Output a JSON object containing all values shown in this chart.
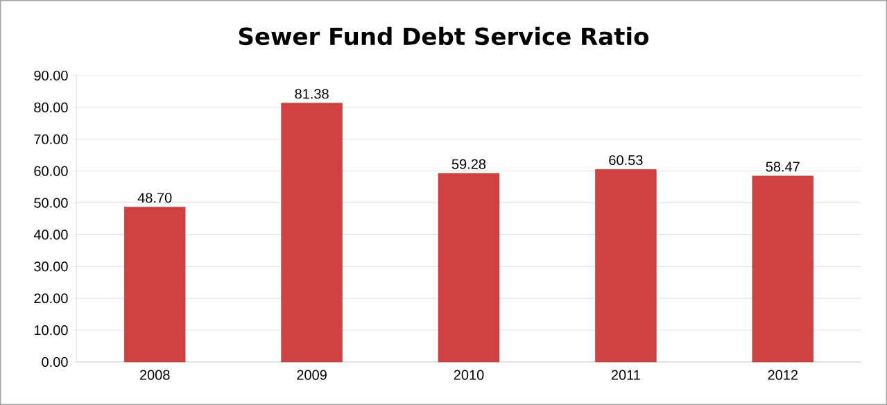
{
  "chart_data": {
    "type": "bar",
    "title": "Sewer Fund Debt Service Ratio",
    "categories": [
      "2008",
      "2009",
      "2010",
      "2011",
      "2012"
    ],
    "values": [
      48.7,
      81.38,
      59.28,
      60.53,
      58.47
    ],
    "value_labels": [
      "48.70",
      "81.38",
      "59.28",
      "60.53",
      "58.47"
    ],
    "color": "#d04242",
    "ylim": [
      0,
      90
    ],
    "yticks": [
      {
        "value": 0,
        "label": "0.00"
      },
      {
        "value": 10,
        "label": "10.00"
      },
      {
        "value": 20,
        "label": "20.00"
      },
      {
        "value": 30,
        "label": "30.00"
      },
      {
        "value": 40,
        "label": "40.00"
      },
      {
        "value": 50,
        "label": "50.00"
      },
      {
        "value": 60,
        "label": "60.00"
      },
      {
        "value": 70,
        "label": "70.00"
      },
      {
        "value": 80,
        "label": "80.00"
      },
      {
        "value": 90,
        "label": "90.00"
      }
    ],
    "grid": "y"
  }
}
